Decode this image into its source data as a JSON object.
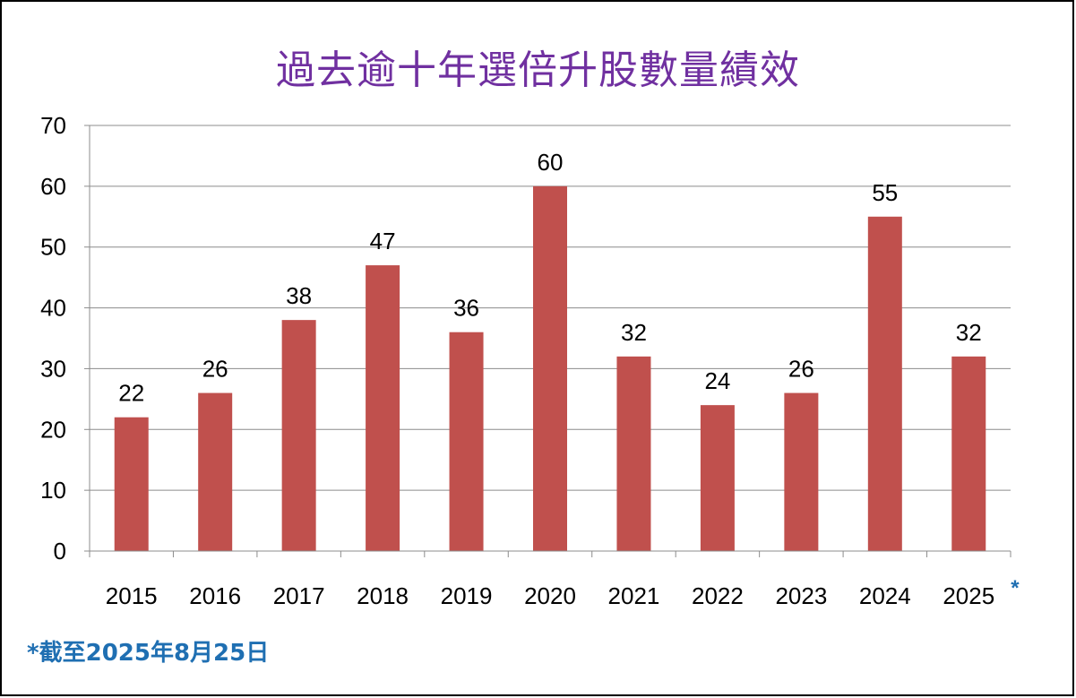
{
  "chart_data": {
    "type": "bar",
    "title": "過去逾十年選倍升股數量績效",
    "categories": [
      "2015",
      "2016",
      "2017",
      "2018",
      "2019",
      "2020",
      "2021",
      "2022",
      "2023",
      "2024",
      "2025"
    ],
    "values": [
      22,
      26,
      38,
      47,
      36,
      60,
      32,
      24,
      26,
      55,
      32
    ],
    "ylim": [
      0,
      70
    ],
    "yticks": [
      0,
      10,
      20,
      30,
      40,
      50,
      60,
      70
    ],
    "grid": true,
    "bar_color": "#c0504d",
    "title_color": "#7030a0",
    "last_category_marker": "*"
  },
  "footnote": "*截至2025年8月25日",
  "colors": {
    "accent": "#1f6fb2"
  }
}
